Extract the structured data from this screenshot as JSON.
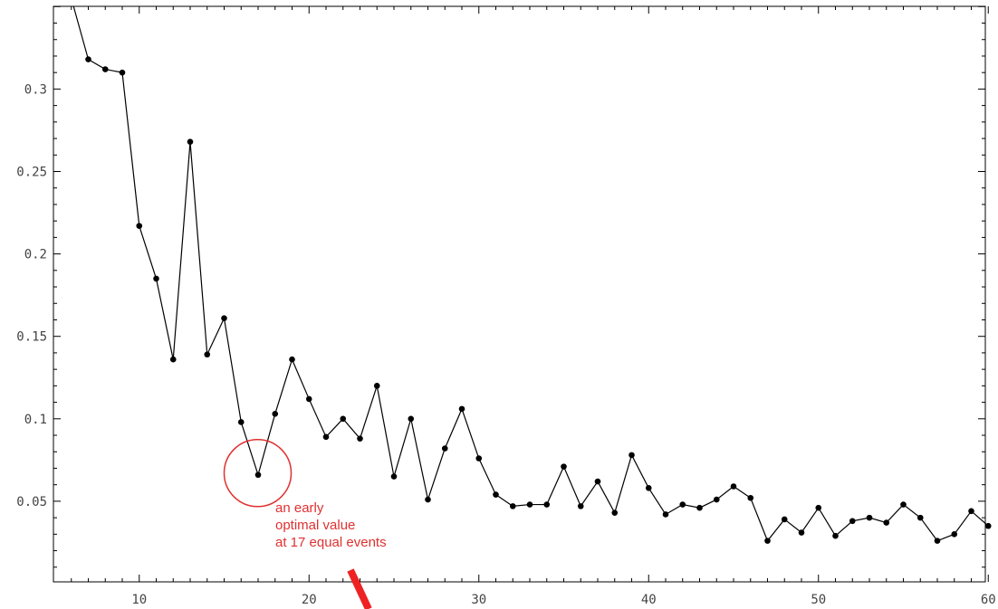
{
  "chart_data": {
    "type": "line",
    "title": "",
    "xlabel": "",
    "ylabel": "",
    "xlim": [
      5,
      60
    ],
    "ylim": [
      0,
      0.35
    ],
    "x_ticks": [
      10,
      20,
      30,
      40,
      50,
      60
    ],
    "y_ticks": [
      0.05,
      0.1,
      0.15,
      0.2,
      0.25,
      0.3
    ],
    "x_tick_labels": [
      "10",
      "20",
      "30",
      "40",
      "50",
      "60"
    ],
    "y_tick_labels": [
      "0.05",
      "0.1",
      "0.15",
      "0.2",
      "0.25",
      "0.3"
    ],
    "grid": false,
    "legend": "none",
    "colors": {
      "line": "#000000",
      "annotation": "#e03030"
    },
    "series": [
      {
        "x": [
          6,
          7,
          8,
          9,
          10,
          11,
          12,
          13,
          14,
          15,
          16,
          17,
          18,
          19,
          20,
          21,
          22,
          23,
          24,
          25,
          26,
          27,
          28,
          29,
          30,
          31,
          32,
          33,
          34,
          35,
          36,
          37,
          38,
          39,
          40,
          41,
          42,
          43,
          44,
          45,
          46,
          47,
          48,
          49,
          50,
          51,
          52,
          53,
          54,
          55,
          56,
          57,
          58,
          59,
          60
        ],
        "y": [
          0.355,
          0.318,
          0.312,
          0.31,
          0.217,
          0.185,
          0.136,
          0.268,
          0.139,
          0.161,
          0.098,
          0.066,
          0.103,
          0.136,
          0.112,
          0.089,
          0.1,
          0.088,
          0.12,
          0.065,
          0.1,
          0.051,
          0.082,
          0.106,
          0.076,
          0.054,
          0.047,
          0.048,
          0.048,
          0.071,
          0.047,
          0.062,
          0.043,
          0.078,
          0.058,
          0.042,
          0.048,
          0.046,
          0.051,
          0.059,
          0.052,
          0.026,
          0.039,
          0.031,
          0.046,
          0.029,
          0.038,
          0.04,
          0.037,
          0.048,
          0.04,
          0.026,
          0.03,
          0.044,
          0.035
        ]
      }
    ],
    "annotation": {
      "lines": [
        "an early",
        "optimal value",
        "at 17 equal events"
      ],
      "target_x": 17,
      "target_y": 0.066
    }
  }
}
